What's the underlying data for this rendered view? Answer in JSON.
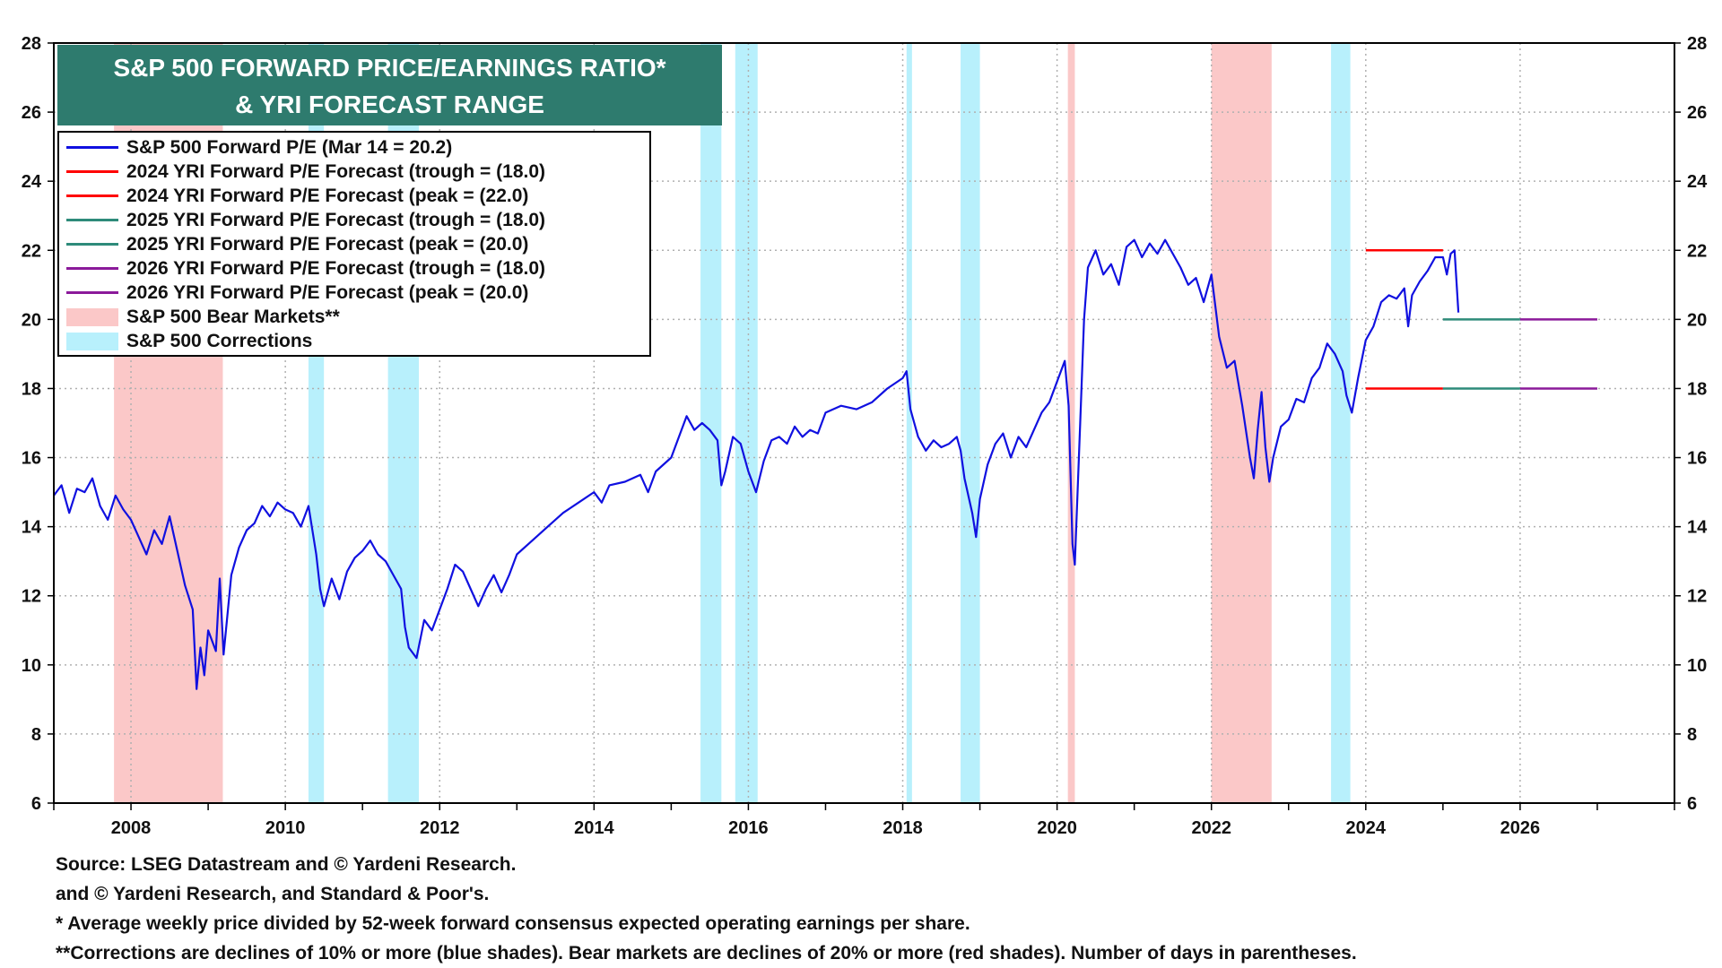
{
  "chart_data": {
    "type": "line",
    "title": "S&P 500 FORWARD PRICE/EARNINGS RATIO*",
    "subtitle": "& YRI FORECAST RANGE",
    "xlim": [
      2007.0,
      2028.0
    ],
    "ylim": [
      6,
      28
    ],
    "x_ticks": [
      2008,
      2010,
      2012,
      2014,
      2016,
      2018,
      2020,
      2022,
      2024,
      2026
    ],
    "y_ticks": [
      6,
      8,
      10,
      12,
      14,
      16,
      18,
      20,
      22,
      24,
      26,
      28
    ],
    "grid": true,
    "legend_placement": "top-left",
    "colors": {
      "pe_line": "#1010e0",
      "forecast_2024": "#ff0000",
      "forecast_2025": "#2e8b7a",
      "forecast_2026": "#8b1a9a",
      "bear": "#fbc8c8",
      "correction": "#b8f0fc",
      "title_bg": "#2e7b6e"
    },
    "series": [
      {
        "name": "S&P 500 Forward P/E (Mar 14 = 20.2)",
        "color": "#1010e0",
        "points": [
          [
            2007.0,
            14.9
          ],
          [
            2007.1,
            15.2
          ],
          [
            2007.2,
            14.4
          ],
          [
            2007.3,
            15.1
          ],
          [
            2007.4,
            15.0
          ],
          [
            2007.5,
            15.4
          ],
          [
            2007.6,
            14.6
          ],
          [
            2007.7,
            14.2
          ],
          [
            2007.8,
            14.9
          ],
          [
            2007.9,
            14.5
          ],
          [
            2008.0,
            14.2
          ],
          [
            2008.1,
            13.7
          ],
          [
            2008.2,
            13.2
          ],
          [
            2008.3,
            13.9
          ],
          [
            2008.4,
            13.5
          ],
          [
            2008.5,
            14.3
          ],
          [
            2008.6,
            13.3
          ],
          [
            2008.7,
            12.3
          ],
          [
            2008.8,
            11.6
          ],
          [
            2008.85,
            9.3
          ],
          [
            2008.9,
            10.5
          ],
          [
            2008.95,
            9.7
          ],
          [
            2009.0,
            11.0
          ],
          [
            2009.1,
            10.4
          ],
          [
            2009.15,
            12.5
          ],
          [
            2009.2,
            10.3
          ],
          [
            2009.3,
            12.6
          ],
          [
            2009.4,
            13.4
          ],
          [
            2009.5,
            13.9
          ],
          [
            2009.6,
            14.1
          ],
          [
            2009.7,
            14.6
          ],
          [
            2009.8,
            14.3
          ],
          [
            2009.9,
            14.7
          ],
          [
            2010.0,
            14.5
          ],
          [
            2010.1,
            14.4
          ],
          [
            2010.2,
            14.0
          ],
          [
            2010.3,
            14.6
          ],
          [
            2010.35,
            13.9
          ],
          [
            2010.4,
            13.2
          ],
          [
            2010.45,
            12.2
          ],
          [
            2010.5,
            11.7
          ],
          [
            2010.6,
            12.5
          ],
          [
            2010.7,
            11.9
          ],
          [
            2010.8,
            12.7
          ],
          [
            2010.9,
            13.1
          ],
          [
            2011.0,
            13.3
          ],
          [
            2011.1,
            13.6
          ],
          [
            2011.2,
            13.2
          ],
          [
            2011.3,
            13.0
          ],
          [
            2011.4,
            12.6
          ],
          [
            2011.5,
            12.2
          ],
          [
            2011.55,
            11.1
          ],
          [
            2011.6,
            10.5
          ],
          [
            2011.7,
            10.2
          ],
          [
            2011.8,
            11.3
          ],
          [
            2011.9,
            11.0
          ],
          [
            2012.0,
            11.6
          ],
          [
            2012.1,
            12.2
          ],
          [
            2012.2,
            12.9
          ],
          [
            2012.3,
            12.7
          ],
          [
            2012.4,
            12.2
          ],
          [
            2012.5,
            11.7
          ],
          [
            2012.6,
            12.2
          ],
          [
            2012.7,
            12.6
          ],
          [
            2012.8,
            12.1
          ],
          [
            2012.9,
            12.6
          ],
          [
            2013.0,
            13.2
          ],
          [
            2013.2,
            13.6
          ],
          [
            2013.4,
            14.0
          ],
          [
            2013.6,
            14.4
          ],
          [
            2013.8,
            14.7
          ],
          [
            2014.0,
            15.0
          ],
          [
            2014.1,
            14.7
          ],
          [
            2014.2,
            15.2
          ],
          [
            2014.4,
            15.3
          ],
          [
            2014.6,
            15.5
          ],
          [
            2014.7,
            15.0
          ],
          [
            2014.8,
            15.6
          ],
          [
            2015.0,
            16.0
          ],
          [
            2015.1,
            16.6
          ],
          [
            2015.2,
            17.2
          ],
          [
            2015.3,
            16.8
          ],
          [
            2015.4,
            17.0
          ],
          [
            2015.5,
            16.8
          ],
          [
            2015.6,
            16.5
          ],
          [
            2015.65,
            15.2
          ],
          [
            2015.7,
            15.6
          ],
          [
            2015.8,
            16.6
          ],
          [
            2015.9,
            16.4
          ],
          [
            2016.0,
            15.6
          ],
          [
            2016.1,
            15.0
          ],
          [
            2016.2,
            15.9
          ],
          [
            2016.3,
            16.5
          ],
          [
            2016.4,
            16.6
          ],
          [
            2016.5,
            16.4
          ],
          [
            2016.6,
            16.9
          ],
          [
            2016.7,
            16.6
          ],
          [
            2016.8,
            16.8
          ],
          [
            2016.9,
            16.7
          ],
          [
            2017.0,
            17.3
          ],
          [
            2017.2,
            17.5
          ],
          [
            2017.4,
            17.4
          ],
          [
            2017.6,
            17.6
          ],
          [
            2017.8,
            18.0
          ],
          [
            2018.0,
            18.3
          ],
          [
            2018.05,
            18.5
          ],
          [
            2018.1,
            17.4
          ],
          [
            2018.15,
            17.0
          ],
          [
            2018.2,
            16.6
          ],
          [
            2018.3,
            16.2
          ],
          [
            2018.4,
            16.5
          ],
          [
            2018.5,
            16.3
          ],
          [
            2018.6,
            16.4
          ],
          [
            2018.7,
            16.6
          ],
          [
            2018.75,
            16.2
          ],
          [
            2018.8,
            15.4
          ],
          [
            2018.9,
            14.4
          ],
          [
            2018.95,
            13.7
          ],
          [
            2019.0,
            14.8
          ],
          [
            2019.1,
            15.8
          ],
          [
            2019.2,
            16.4
          ],
          [
            2019.3,
            16.7
          ],
          [
            2019.4,
            16.0
          ],
          [
            2019.5,
            16.6
          ],
          [
            2019.6,
            16.3
          ],
          [
            2019.7,
            16.8
          ],
          [
            2019.8,
            17.3
          ],
          [
            2019.9,
            17.6
          ],
          [
            2020.0,
            18.2
          ],
          [
            2020.1,
            18.8
          ],
          [
            2020.15,
            17.5
          ],
          [
            2020.2,
            13.5
          ],
          [
            2020.23,
            12.9
          ],
          [
            2020.3,
            17.0
          ],
          [
            2020.35,
            20.0
          ],
          [
            2020.4,
            21.5
          ],
          [
            2020.5,
            22.0
          ],
          [
            2020.6,
            21.3
          ],
          [
            2020.7,
            21.6
          ],
          [
            2020.8,
            21.0
          ],
          [
            2020.9,
            22.1
          ],
          [
            2021.0,
            22.3
          ],
          [
            2021.1,
            21.8
          ],
          [
            2021.2,
            22.2
          ],
          [
            2021.3,
            21.9
          ],
          [
            2021.4,
            22.3
          ],
          [
            2021.5,
            21.9
          ],
          [
            2021.6,
            21.5
          ],
          [
            2021.7,
            21.0
          ],
          [
            2021.8,
            21.2
          ],
          [
            2021.9,
            20.5
          ],
          [
            2022.0,
            21.3
          ],
          [
            2022.05,
            20.4
          ],
          [
            2022.1,
            19.5
          ],
          [
            2022.2,
            18.6
          ],
          [
            2022.3,
            18.8
          ],
          [
            2022.4,
            17.5
          ],
          [
            2022.5,
            16.0
          ],
          [
            2022.55,
            15.4
          ],
          [
            2022.6,
            16.8
          ],
          [
            2022.65,
            17.9
          ],
          [
            2022.7,
            16.3
          ],
          [
            2022.75,
            15.3
          ],
          [
            2022.8,
            16.0
          ],
          [
            2022.9,
            16.9
          ],
          [
            2023.0,
            17.1
          ],
          [
            2023.1,
            17.7
          ],
          [
            2023.2,
            17.6
          ],
          [
            2023.3,
            18.3
          ],
          [
            2023.4,
            18.6
          ],
          [
            2023.5,
            19.3
          ],
          [
            2023.6,
            19.0
          ],
          [
            2023.7,
            18.5
          ],
          [
            2023.75,
            17.8
          ],
          [
            2023.82,
            17.3
          ],
          [
            2023.9,
            18.3
          ],
          [
            2024.0,
            19.4
          ],
          [
            2024.1,
            19.8
          ],
          [
            2024.2,
            20.5
          ],
          [
            2024.3,
            20.7
          ],
          [
            2024.4,
            20.6
          ],
          [
            2024.5,
            20.9
          ],
          [
            2024.55,
            19.8
          ],
          [
            2024.6,
            20.7
          ],
          [
            2024.7,
            21.1
          ],
          [
            2024.8,
            21.4
          ],
          [
            2024.9,
            21.8
          ],
          [
            2025.0,
            21.8
          ],
          [
            2025.05,
            21.3
          ],
          [
            2025.1,
            21.9
          ],
          [
            2025.15,
            22.0
          ],
          [
            2025.2,
            20.2
          ]
        ]
      },
      {
        "name": "2024 YRI Forward P/E Forecast (trough = (18.0)",
        "color": "#ff0000",
        "x": [
          2024.0,
          2025.0
        ],
        "y": [
          18.0,
          18.0
        ]
      },
      {
        "name": "2024 YRI Forward P/E Forecast (peak = (22.0)",
        "color": "#ff0000",
        "x": [
          2024.0,
          2025.0
        ],
        "y": [
          22.0,
          22.0
        ]
      },
      {
        "name": "2025 YRI Forward P/E Forecast (trough = (18.0)",
        "color": "#2e8b7a",
        "x": [
          2025.0,
          2026.0
        ],
        "y": [
          18.0,
          18.0
        ]
      },
      {
        "name": "2025 YRI Forward P/E Forecast (peak = (20.0)",
        "color": "#2e8b7a",
        "x": [
          2025.0,
          2026.0
        ],
        "y": [
          20.0,
          20.0
        ]
      },
      {
        "name": "2026 YRI Forward P/E Forecast (trough = (18.0)",
        "color": "#8b1a9a",
        "x": [
          2026.0,
          2027.0
        ],
        "y": [
          18.0,
          18.0
        ]
      },
      {
        "name": "2026 YRI Forward P/E Forecast (peak = (20.0)",
        "color": "#8b1a9a",
        "x": [
          2026.0,
          2027.0
        ],
        "y": [
          20.0,
          20.0
        ]
      }
    ],
    "shaded_regions": [
      {
        "name": "S&P 500 Bear Markets**",
        "kind": "bear",
        "ranges": [
          [
            2007.78,
            2009.19
          ],
          [
            2020.14,
            2020.23
          ],
          [
            2022.0,
            2022.78
          ]
        ]
      },
      {
        "name": "S&P 500 Corrections",
        "kind": "correction",
        "ranges": [
          [
            2010.3,
            2010.5
          ],
          [
            2011.33,
            2011.73
          ],
          [
            2015.38,
            2015.65
          ],
          [
            2015.83,
            2016.12
          ],
          [
            2018.05,
            2018.12
          ],
          [
            2018.75,
            2019.0
          ],
          [
            2023.55,
            2023.8
          ]
        ]
      }
    ],
    "notes": [
      "Source: LSEG Datastream and © Yardeni Research.",
      " and © Yardeni Research, and Standard & Poor's.",
      "* Average weekly price divided by 52-week forward consensus expected operating earnings per share.",
      "**Corrections are declines of 10% or more (blue shades). Bear markets are declines of 20% or more (red shades). Number of days in parentheses."
    ]
  }
}
